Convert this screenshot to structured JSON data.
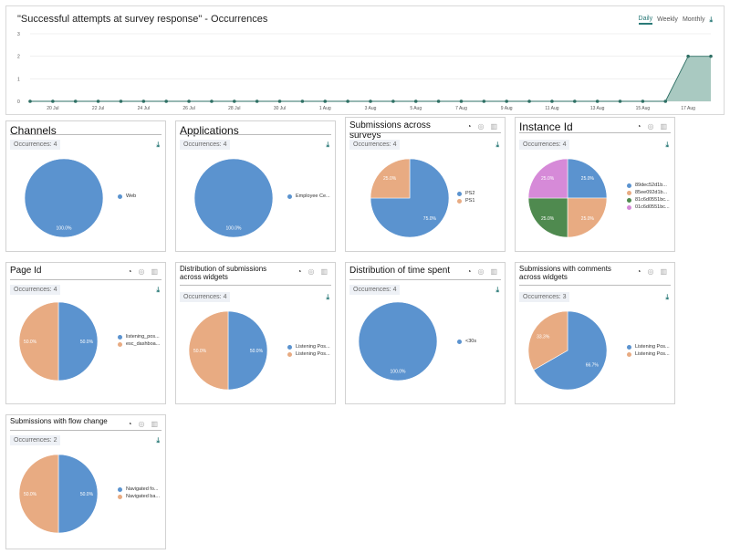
{
  "header": {
    "title": "\"Successful attempts at survey response\" - Occurrences",
    "tabs": [
      {
        "label": "Daily",
        "active": true
      },
      {
        "label": "Weekly",
        "active": false
      },
      {
        "label": "Monthly",
        "active": false
      }
    ],
    "download_icon": "download-icon"
  },
  "chart_data": [
    {
      "type": "area",
      "title": "\"Successful attempts at survey response\" - Occurrences",
      "x_tick_labels": [
        "20 Jul",
        "22 Jul",
        "24 Jul",
        "26 Jul",
        "28 Jul",
        "30 Jul",
        "1 Aug",
        "3 Aug",
        "5 Aug",
        "7 Aug",
        "9 Aug",
        "11 Aug",
        "13 Aug",
        "15 Aug",
        "17 Aug"
      ],
      "y_tick_labels": [
        "0",
        "1",
        "2",
        "3"
      ],
      "ylim": [
        0,
        3
      ],
      "x": [
        "19 Jul",
        "20 Jul",
        "21 Jul",
        "22 Jul",
        "23 Jul",
        "24 Jul",
        "25 Jul",
        "26 Jul",
        "27 Jul",
        "28 Jul",
        "29 Jul",
        "30 Jul",
        "31 Jul",
        "1 Aug",
        "2 Aug",
        "3 Aug",
        "4 Aug",
        "5 Aug",
        "6 Aug",
        "7 Aug",
        "8 Aug",
        "9 Aug",
        "10 Aug",
        "11 Aug",
        "12 Aug",
        "13 Aug",
        "14 Aug",
        "15 Aug",
        "16 Aug",
        "17 Aug",
        "18 Aug"
      ],
      "values": [
        0,
        0,
        0,
        0,
        0,
        0,
        0,
        0,
        0,
        0,
        0,
        0,
        0,
        0,
        0,
        0,
        0,
        0,
        0,
        0,
        0,
        0,
        0,
        0,
        0,
        0,
        0,
        0,
        0,
        2,
        2
      ],
      "color": "#2e6f64",
      "fill": "#a9c9c1",
      "grid": true
    },
    {
      "id": "channels",
      "type": "pie",
      "title": "Channels",
      "title_size": "big",
      "occurrences": "Occurrences: 4",
      "show_tools": false,
      "slices": [
        {
          "label": "Web",
          "value": 100,
          "pct": "100.0%",
          "color": "#5b93cf"
        }
      ]
    },
    {
      "id": "applications",
      "type": "pie",
      "title": "Applications",
      "title_size": "big",
      "occurrences": "Occurrences: 4",
      "show_tools": false,
      "slices": [
        {
          "label": "Employee Ce...",
          "value": 100,
          "pct": "100.0%",
          "color": "#5b93cf"
        }
      ]
    },
    {
      "id": "submissions-surveys",
      "type": "pie",
      "title": "Submissions across surveys",
      "title_size": "mid",
      "occurrences": "Occurrences: 4",
      "show_tools": true,
      "slices": [
        {
          "label": "PS2",
          "value": 75,
          "pct": "75.0%",
          "color": "#5b93cf"
        },
        {
          "label": "PS1",
          "value": 25,
          "pct": "25.0%",
          "color": "#e8ab82"
        }
      ]
    },
    {
      "id": "instance-id",
      "type": "pie",
      "title": "Instance Id",
      "title_size": "big",
      "occurrences": "Occurrences: 4",
      "show_tools": true,
      "slices": [
        {
          "label": "89dec52d1b...",
          "value": 25,
          "pct": "25.0%",
          "color": "#5b93cf"
        },
        {
          "label": "85ee092d1b...",
          "value": 25,
          "pct": "25.0%",
          "color": "#e8ab82"
        },
        {
          "label": "81c6d0551bc...",
          "value": 25,
          "pct": "25.0%",
          "color": "#4f8a4f"
        },
        {
          "label": "01c6d0551bc...",
          "value": 25,
          "pct": "25.0%",
          "color": "#d68ad8"
        }
      ]
    },
    {
      "id": "page-id",
      "type": "pie",
      "title": "Page Id",
      "title_size": "mid",
      "occurrences": "Occurrences: 4",
      "show_tools": true,
      "slices": [
        {
          "label": "listening_pos...",
          "value": 50,
          "pct": "50.0%",
          "color": "#5b93cf"
        },
        {
          "label": "esc_dashboa...",
          "value": 50,
          "pct": "50.0%",
          "color": "#e8ab82"
        }
      ]
    },
    {
      "id": "distribution-widgets",
      "type": "pie",
      "title": "Distribution of submissions across widgets",
      "title_size": "small",
      "occurrences": "Occurrences: 4",
      "show_tools": true,
      "slices": [
        {
          "label": "Listening Pos...",
          "value": 50,
          "pct": "50.0%",
          "color": "#5b93cf"
        },
        {
          "label": "Listening Pos...",
          "value": 50,
          "pct": "50.0%",
          "color": "#e8ab82"
        }
      ]
    },
    {
      "id": "time-spent",
      "type": "pie",
      "title": "Distribution of time spent",
      "title_size": "mid",
      "occurrences": "Occurrences: 4",
      "show_tools": true,
      "slices": [
        {
          "label": "<30s",
          "value": 100,
          "pct": "100.0%",
          "color": "#5b93cf"
        }
      ]
    },
    {
      "id": "comments-widgets",
      "type": "pie",
      "title": "Submissions with comments across widgets",
      "title_size": "small",
      "occurrences": "Occurrences: 3",
      "show_tools": true,
      "slices": [
        {
          "label": "Listening Pos...",
          "value": 66.7,
          "pct": "66.7%",
          "color": "#5b93cf"
        },
        {
          "label": "Listening Pos...",
          "value": 33.3,
          "pct": "33.3%",
          "color": "#e8ab82"
        }
      ]
    },
    {
      "id": "flow-change",
      "type": "pie",
      "title": "Submissions with flow change",
      "title_size": "small",
      "occurrences": "Occurrences: 2",
      "show_tools": true,
      "slices": [
        {
          "label": "Navigated fo...",
          "value": 50,
          "pct": "50.0%",
          "color": "#5b93cf"
        },
        {
          "label": "Navigated ba...",
          "value": 50,
          "pct": "50.0%",
          "color": "#e8ab82"
        }
      ]
    }
  ]
}
